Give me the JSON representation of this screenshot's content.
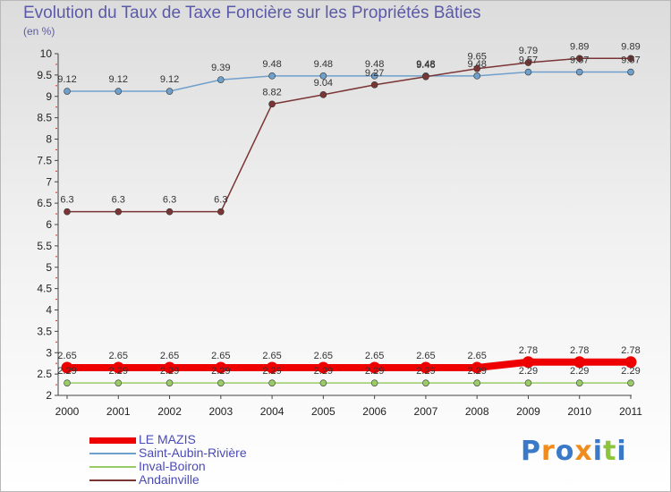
{
  "chart_data": {
    "type": "line",
    "title": "Evolution du Taux de Taxe Foncière sur les Propriétés Bâties",
    "subtitle": "(en %)",
    "x": [
      "2000",
      "2001",
      "2002",
      "2003",
      "2004",
      "2005",
      "2006",
      "2007",
      "2008",
      "2009",
      "2010",
      "2011"
    ],
    "ylim": [
      2,
      10
    ],
    "yticks": [
      "2",
      "2.5",
      "3",
      "3.5",
      "4",
      "4.5",
      "5",
      "5.5",
      "6",
      "6.5",
      "7",
      "7.5",
      "8",
      "8.5",
      "9",
      "9.5",
      "10"
    ],
    "grid": false,
    "legend_position": "bottom-left",
    "series": [
      {
        "name": "LE MAZIS",
        "color": "#ee0000",
        "values": [
          2.65,
          2.65,
          2.65,
          2.65,
          2.65,
          2.65,
          2.65,
          2.65,
          2.65,
          2.78,
          2.78,
          2.78
        ],
        "labels": [
          "2.65",
          "2.65",
          "2.65",
          "2.65",
          "2.65",
          "2.65",
          "2.65",
          "2.65",
          "2.65",
          "2.78",
          "2.78",
          "2.78"
        ]
      },
      {
        "name": "Saint-Aubin-Rivière",
        "color": "#6fa0cc",
        "values": [
          9.12,
          9.12,
          9.12,
          9.39,
          9.48,
          9.48,
          9.48,
          9.48,
          9.48,
          9.57,
          9.57,
          9.57
        ],
        "labels": [
          "9.12",
          "9.12",
          "9.12",
          "9.39",
          "9.48",
          "9.48",
          "9.48",
          "9.48",
          "9.48",
          "9.57",
          "9.57",
          "9.57"
        ]
      },
      {
        "name": "Inval-Boiron",
        "color": "#99cc66",
        "values": [
          2.29,
          2.29,
          2.29,
          2.29,
          2.29,
          2.29,
          2.29,
          2.29,
          2.29,
          2.29,
          2.29,
          2.29
        ],
        "labels": [
          "2.29",
          "2.29",
          "2.29",
          "2.29",
          "2.29",
          "2.29",
          "2.29",
          "2.29",
          "2.29",
          "2.29",
          "2.29",
          "2.29"
        ]
      },
      {
        "name": "Andainville",
        "color": "#7a3535",
        "values": [
          6.3,
          6.3,
          6.3,
          6.3,
          8.82,
          9.04,
          9.27,
          9.46,
          9.65,
          9.79,
          9.89,
          9.89
        ],
        "labels": [
          "6.3",
          "6.3",
          "6.3",
          "6.3",
          "8.82",
          "9.04",
          "9.27",
          "9.46",
          "9.65",
          "9.79",
          "9.89",
          "9.89"
        ]
      }
    ]
  },
  "brand": {
    "letters": [
      "P",
      "r",
      "o",
      "x",
      "i",
      "t",
      "i"
    ],
    "colors": [
      "#3a78c8",
      "#f08c1e",
      "#3a78c8",
      "#f08c1e",
      "#3a78c8",
      "#8cc43c",
      "#3a78c8"
    ]
  }
}
